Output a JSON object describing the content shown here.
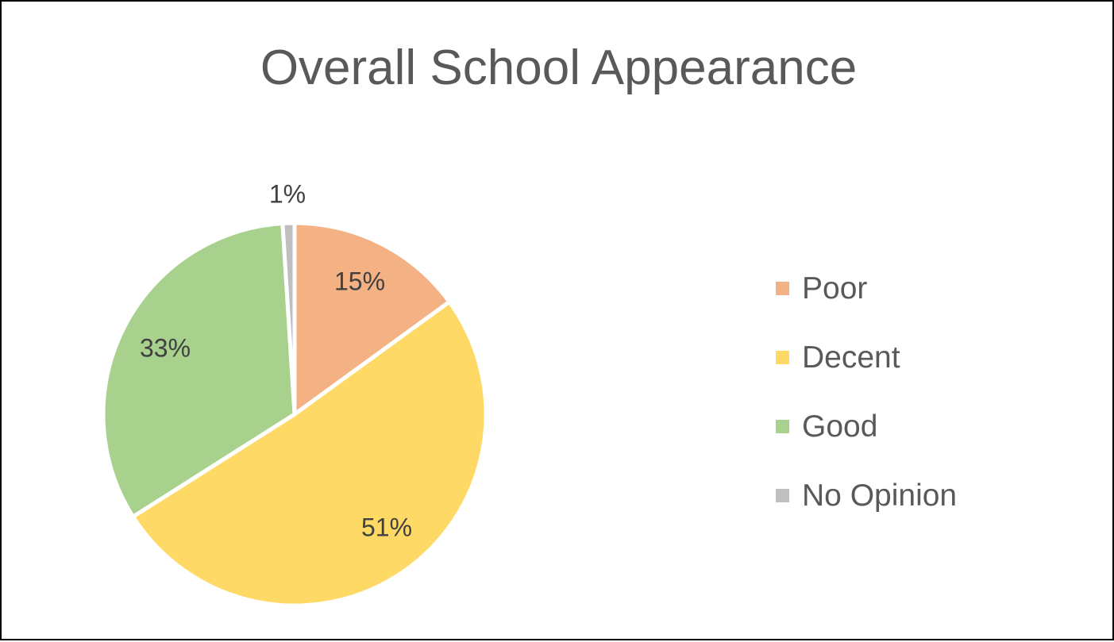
{
  "chart_data": {
    "type": "pie",
    "title": "Overall School Appearance",
    "start_angle_deg": 0,
    "direction": "clockwise",
    "slices": [
      {
        "name": "Poor",
        "value": 15,
        "label": "15%",
        "color": "#F4B183"
      },
      {
        "name": "Decent",
        "value": 51,
        "label": "51%",
        "color": "#FFD966"
      },
      {
        "name": "Good",
        "value": 33,
        "label": "33%",
        "color": "#A9D18E"
      },
      {
        "name": "No Opinion",
        "value": 1,
        "label": "1%",
        "color": "#BFBFBF"
      }
    ],
    "legend": {
      "position": "right"
    }
  }
}
